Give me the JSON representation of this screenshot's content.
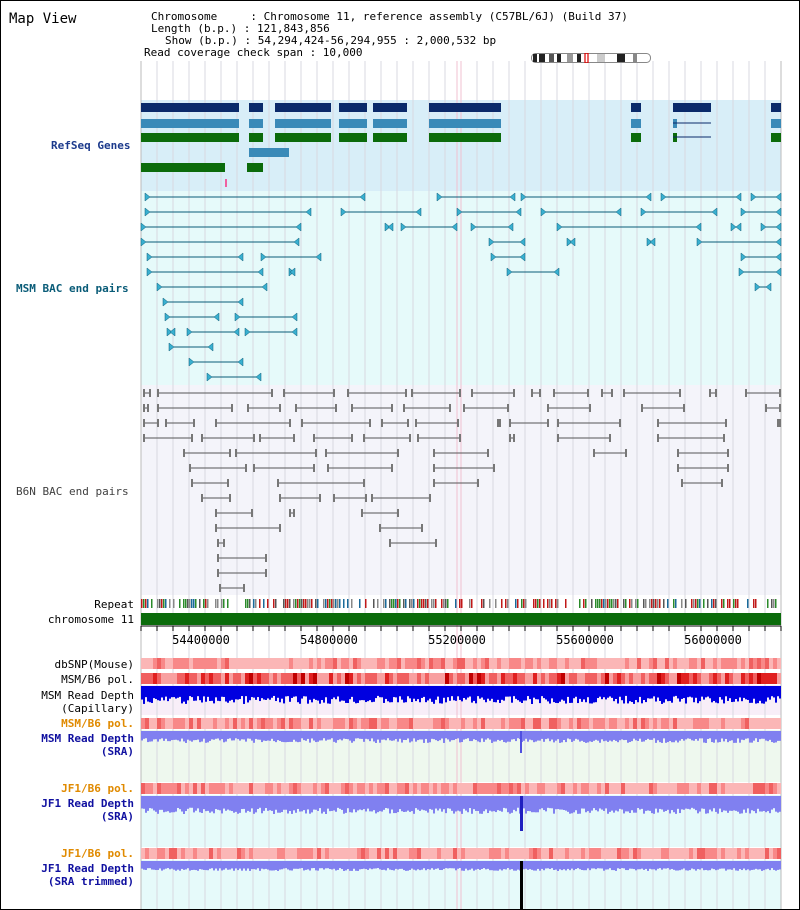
{
  "title": "Map View",
  "info": {
    "line1": "Chromosome     : Chromosome 11, reference assembly (C57BL/6J) (Build 37)",
    "line2": "Length (b.p.) : 121,843,856",
    "line3": "Show (b.p.) : 54,294,424-56,294,955 : 2,000,532 bp",
    "line4": "Read coverage check span : 10,000"
  },
  "tracks": {
    "refseq": "RefSeq Genes",
    "msm_bac": "MSM BAC end pairs",
    "b6n_bac": "B6N BAC end pairs",
    "repeat": "Repeat",
    "chromosome": "chromosome 11",
    "dbsnp": "dbSNP(Mouse)",
    "msm_b6_pol": "MSM/B6 pol.",
    "msm_read_depth_cap_1": "MSM Read Depth",
    "msm_read_depth_cap_2": "(Capillary)",
    "msm_b6_pol_2": "MSM/B6 pol.",
    "msm_read_depth_sra_1": "MSM Read Depth",
    "msm_read_depth_sra_2": "(SRA)",
    "jf1_b6_pol": "JF1/B6 pol.",
    "jf1_read_depth_sra_1": "JF1 Read Depth",
    "jf1_read_depth_sra_2": "(SRA)",
    "jf1_b6_pol_2": "JF1/B6 pol.",
    "jf1_read_depth_trim_1": "JF1 Read Depth",
    "jf1_read_depth_trim_2": "(SRA trimmed)"
  },
  "axis_ticks": [
    "54400000",
    "54800000",
    "55200000",
    "55600000",
    "56000000"
  ],
  "colors": {
    "refseq_bg": "#d8eef8",
    "msm_bg": "#e6fafa",
    "b6n_bg": "#f4f4fa",
    "chromosome_bar": "#0b6b0b",
    "refseq_label": "#1c3a8c",
    "msm_label": "#0a5c78",
    "b6n_label": "#404040",
    "orange_label": "#e08a00",
    "blue_label": "#1010a0"
  }
}
